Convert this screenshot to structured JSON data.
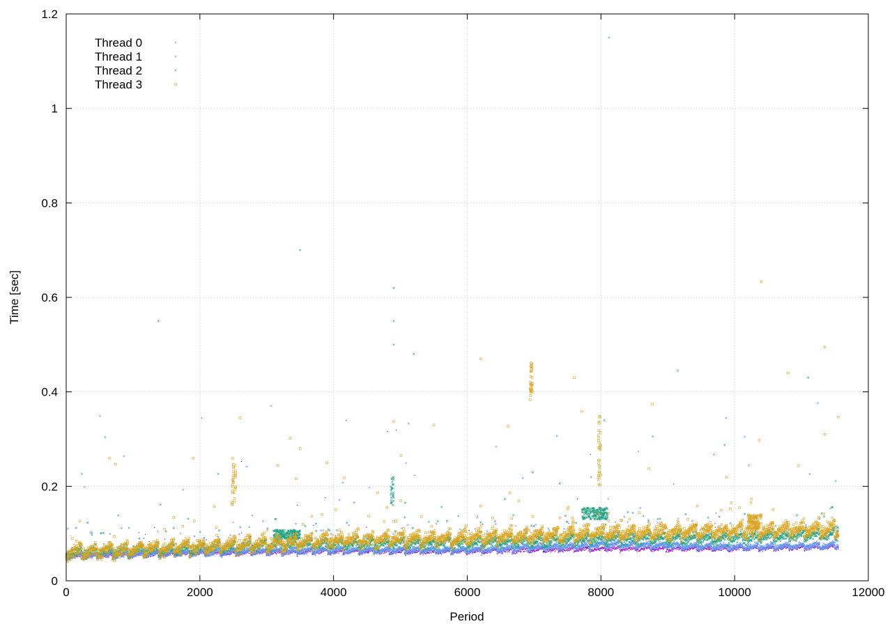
{
  "chart_data": {
    "type": "scatter",
    "title": "",
    "xlabel": "Period",
    "ylabel": "Time [sec]",
    "xlim": [
      0,
      12000
    ],
    "ylim": [
      0,
      1.2
    ],
    "xticks": [
      0,
      2000,
      4000,
      6000,
      8000,
      10000,
      12000
    ],
    "yticks": [
      0,
      0.2,
      0.4,
      0.6,
      0.8,
      1,
      1.2
    ],
    "xtick_labels": [
      "0",
      "2000",
      "4000",
      "6000",
      "8000",
      "10000",
      "12000"
    ],
    "ytick_labels": [
      "0",
      "0.2",
      "0.4",
      "0.6",
      "0.8",
      "1",
      "1.2"
    ],
    "grid": true,
    "legend_position": "top-left",
    "x_range_of_samples": [
      0,
      11550
    ],
    "series": [
      {
        "name": "Thread 0",
        "color": "#9400d3",
        "marker": "dot",
        "baseline_profile": [
          [
            0,
            0.048
          ],
          [
            2000,
            0.054
          ],
          [
            4000,
            0.058
          ],
          [
            6000,
            0.058
          ],
          [
            8000,
            0.064
          ],
          [
            10000,
            0.064
          ],
          [
            11550,
            0.068
          ]
        ],
        "spread": 0.006,
        "outliers": []
      },
      {
        "name": "Thread 1",
        "color": "#6495ed",
        "marker": "x",
        "baseline_profile": [
          [
            0,
            0.048
          ],
          [
            2000,
            0.055
          ],
          [
            4000,
            0.06
          ],
          [
            6000,
            0.06
          ],
          [
            7800,
            0.07
          ],
          [
            8000,
            0.072
          ],
          [
            10000,
            0.067
          ],
          [
            11550,
            0.07
          ]
        ],
        "spread": 0.008,
        "outliers": [
          [
            8120,
            1.15
          ]
        ]
      },
      {
        "name": "Thread 2",
        "color": "#20a080",
        "marker": "x",
        "baseline_profile": [
          [
            0,
            0.052
          ],
          [
            2000,
            0.06
          ],
          [
            3100,
            0.068
          ],
          [
            4000,
            0.07
          ],
          [
            6000,
            0.072
          ],
          [
            8000,
            0.08
          ],
          [
            10000,
            0.082
          ],
          [
            11550,
            0.09
          ]
        ],
        "spread": 0.014,
        "clusters": [
          {
            "x": [
              3100,
              3500
            ],
            "y": [
              0.088,
              0.108
            ]
          },
          {
            "x": [
              7720,
              8100
            ],
            "y": [
              0.13,
              0.155
            ]
          },
          {
            "x": [
              4850,
              4900
            ],
            "y": [
              0.16,
              0.22
            ]
          }
        ],
        "outliers": [
          [
            1380,
            0.55
          ],
          [
            3500,
            0.7
          ],
          [
            4900,
            0.62
          ],
          [
            4900,
            0.55
          ],
          [
            4900,
            0.5
          ],
          [
            5200,
            0.48
          ],
          [
            8050,
            0.34
          ],
          [
            11100,
            0.43
          ],
          [
            9150,
            0.445
          ]
        ]
      },
      {
        "name": "Thread 3",
        "color": "#daa520",
        "marker": "square",
        "baseline_profile": [
          [
            0,
            0.05
          ],
          [
            2000,
            0.062
          ],
          [
            4000,
            0.075
          ],
          [
            6000,
            0.08
          ],
          [
            8000,
            0.09
          ],
          [
            10000,
            0.095
          ],
          [
            11550,
            0.1
          ]
        ],
        "spread": 0.018,
        "clusters": [
          {
            "x": [
              2480,
              2540
            ],
            "y": [
              0.16,
              0.26
            ]
          },
          {
            "x": [
              6940,
              6980
            ],
            "y": [
              0.38,
              0.47
            ]
          },
          {
            "x": [
              10200,
              10400
            ],
            "y": [
              0.11,
              0.14
            ]
          },
          {
            "x": [
              7960,
              8000
            ],
            "y": [
              0.2,
              0.35
            ]
          }
        ],
        "outliers": [
          [
            10400,
            0.633
          ],
          [
            11350,
            0.495
          ],
          [
            6200,
            0.47
          ],
          [
            7600,
            0.43
          ],
          [
            5500,
            0.33
          ],
          [
            3500,
            0.28
          ],
          [
            3900,
            0.25
          ],
          [
            2600,
            0.345
          ],
          [
            1900,
            0.26
          ],
          [
            11350,
            0.31
          ],
          [
            10800,
            0.44
          ]
        ]
      }
    ]
  }
}
